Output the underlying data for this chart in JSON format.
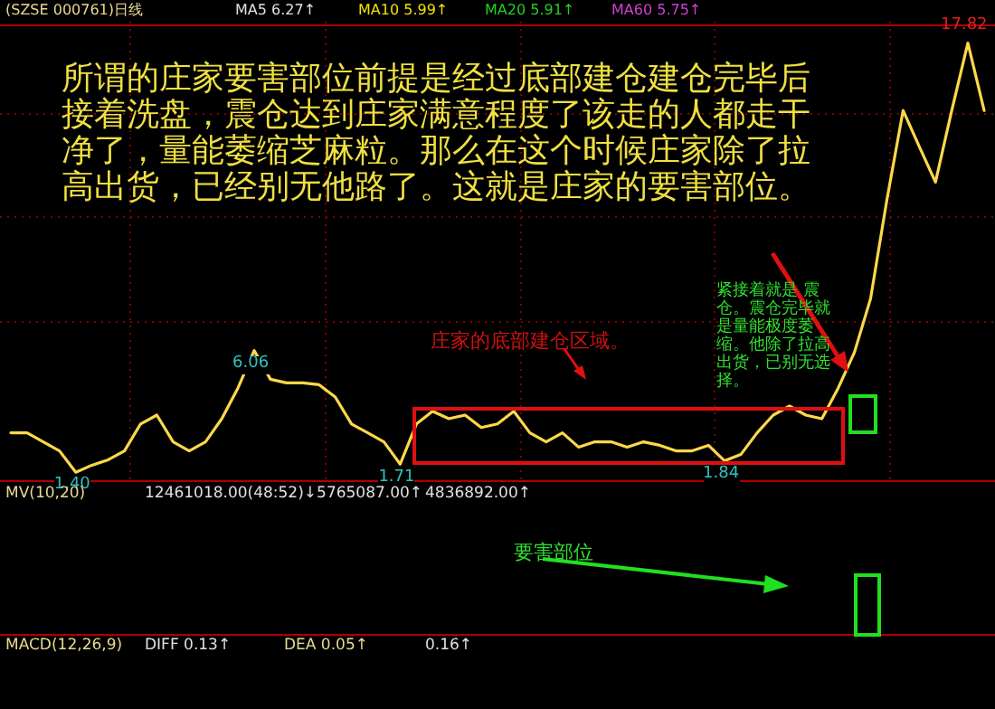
{
  "chart_data": [
    {
      "type": "line",
      "title": "(SZSE 000761)日线",
      "categories": [
        null,
        null,
        null,
        null,
        null,
        null,
        null,
        null,
        null,
        null,
        null,
        null,
        null,
        null,
        null,
        null,
        null,
        null,
        null,
        null,
        null,
        null,
        null,
        null,
        null,
        null,
        null,
        null,
        null,
        null,
        null,
        null,
        null,
        null,
        null,
        null,
        null,
        null,
        null,
        null,
        null,
        null,
        null,
        null,
        null,
        null,
        null,
        null,
        null,
        null,
        null,
        null,
        null,
        null,
        null,
        null,
        null,
        null,
        null,
        null,
        null
      ],
      "series": [
        {
          "color": "#ffd84a",
          "values": [
            2.91,
            2.91,
            2.56,
            2.22,
            1.4,
            1.67,
            1.88,
            2.22,
            3.25,
            3.59,
            2.56,
            2.22,
            2.56,
            3.45,
            4.62,
            6.06,
            4.96,
            4.82,
            4.82,
            4.75,
            4.28,
            3.25,
            2.91,
            2.56,
            1.71,
            3.25,
            3.73,
            3.45,
            3.59,
            3.11,
            3.25,
            3.73,
            2.91,
            2.56,
            2.91,
            2.36,
            2.56,
            2.56,
            2.36,
            2.56,
            2.43,
            2.22,
            2.22,
            2.43,
            1.84,
            2.08,
            2.91,
            3.59,
            3.93,
            3.59,
            3.45,
            4.62,
            5.99,
            8.04,
            11.81,
            15.24,
            13.87,
            12.5,
            15.24,
            17.82,
            15.24
          ],
          "value_labels": [
            null,
            null,
            null,
            null,
            "1.40",
            null,
            null,
            null,
            null,
            null,
            null,
            null,
            null,
            null,
            null,
            "6.06",
            null,
            null,
            null,
            null,
            null,
            null,
            null,
            null,
            "1.71",
            null,
            null,
            null,
            null,
            null,
            null,
            null,
            null,
            null,
            null,
            null,
            null,
            null,
            null,
            null,
            null,
            null,
            null,
            null,
            "1.84",
            null,
            null,
            null,
            null,
            null,
            null,
            null,
            null,
            null,
            null,
            null,
            null,
            null,
            null,
            "17.82",
            null
          ]
        }
      ],
      "ylim": [
        1.2,
        18.5
      ],
      "grid": true,
      "annotations": [
        "MA5 6.27↑",
        "MA10 5.99↑",
        "MA20 5.91↑",
        "MA60 5.75↑",
        "所谓的庄家要害部位前提是经过底部建仓建仓完毕后接着洗盘，震仓达到庄家满意程度了该走的人都走干净了，量能萎缩芝麻粒。那么在这个时候庄家除了拉高出货，已经别无他路了。这就是庄家的要害部位。",
        "紧接着就是 震仓。震仓完毕就是量能极度萎缩。他除了拉高出货，已别无选择。",
        "庄家的底部建仓区域。"
      ]
    },
    {
      "type": "other",
      "annotations": [
        "MV(10,20)",
        "12461018.00(48:52)↓5765087.00↑",
        "4836892.00↑",
        "要害部位",
        "MACD(12,26,9)",
        "DIFF 0.13↑",
        "DEA 0.05↑",
        "0.16↑"
      ]
    }
  ]
}
